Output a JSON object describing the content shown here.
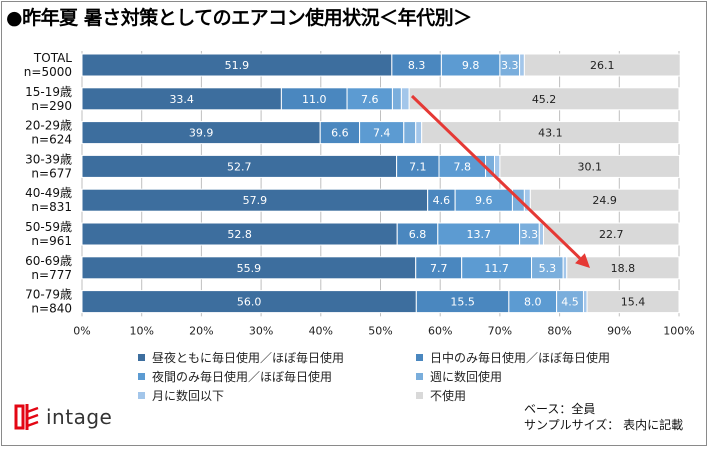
{
  "title": "●昨年夏 暑さ対策としてのエアコン使用状況＜年代別＞",
  "colors": {
    "series": [
      "#3d6e9e",
      "#4a87bf",
      "#5c9bd2",
      "#7aaedc",
      "#a3c6ea",
      "#d9d9d9"
    ],
    "arrow": "#e53935",
    "grid": "#bfbfbf"
  },
  "chart_data": {
    "type": "bar",
    "orientation": "horizontal",
    "stacked": true,
    "categories": [
      [
        "TOTAL",
        "n=5000"
      ],
      [
        "15-19歳",
        "n=290"
      ],
      [
        "20-29歳",
        "n=624"
      ],
      [
        "30-39歳",
        "n=677"
      ],
      [
        "40-49歳",
        "n=831"
      ],
      [
        "50-59歳",
        "n=961"
      ],
      [
        "60-69歳",
        "n=777"
      ],
      [
        "70-79歳",
        "n=840"
      ]
    ],
    "series": [
      {
        "name": "昼夜ともに毎日使用／ほぼ毎日使用",
        "values": [
          51.9,
          33.4,
          39.9,
          52.7,
          57.9,
          52.8,
          55.9,
          56.0
        ]
      },
      {
        "name": "日中のみ毎日使用／ほぼ毎日使用",
        "values": [
          8.3,
          11.0,
          6.6,
          7.1,
          4.6,
          6.8,
          7.7,
          15.5
        ]
      },
      {
        "name": "夜間のみ毎日使用／ほぼ毎日使用",
        "values": [
          9.8,
          7.6,
          7.4,
          7.8,
          9.6,
          13.7,
          11.7,
          8.0
        ]
      },
      {
        "name": "週に数回使用",
        "values": [
          3.3,
          1.5,
          2.0,
          1.5,
          2.0,
          3.3,
          5.3,
          4.5
        ]
      },
      {
        "name": "月に数回以下",
        "values": [
          0.8,
          1.3,
          1.0,
          0.9,
          1.0,
          0.7,
          0.6,
          0.6
        ]
      },
      {
        "name": "不使用",
        "values": [
          26.1,
          45.2,
          43.1,
          30.1,
          24.9,
          22.7,
          18.8,
          15.4
        ]
      }
    ],
    "labels": [
      [
        "51.9",
        "8.3",
        "9.8",
        "3.3",
        "",
        "26.1"
      ],
      [
        "33.4",
        "11.0",
        "7.6",
        "",
        "",
        "45.2"
      ],
      [
        "39.9",
        "6.6",
        "7.4",
        "",
        "",
        "43.1"
      ],
      [
        "52.7",
        "7.1",
        "7.8",
        "",
        "",
        "30.1"
      ],
      [
        "57.9",
        "4.6",
        "9.6",
        "",
        "",
        "24.9"
      ],
      [
        "52.8",
        "6.8",
        "13.7",
        "3.3",
        "",
        "22.7"
      ],
      [
        "55.9",
        "7.7",
        "11.7",
        "5.3",
        "",
        "18.8"
      ],
      [
        "56.0",
        "15.5",
        "8.0",
        "4.5",
        "",
        "15.4"
      ]
    ],
    "xlim": [
      0,
      100
    ],
    "xticks": [
      "0%",
      "10%",
      "20%",
      "30%",
      "40%",
      "50%",
      "60%",
      "70%",
      "80%",
      "90%",
      "100%"
    ],
    "grid": true,
    "legend_position": "bottom",
    "annotation": "red downward arrow from the 15-19歳 bar toward the 60-69歳 bar"
  },
  "legend_order": [
    0,
    1,
    2,
    3,
    4,
    5
  ],
  "logo": {
    "text": "intage"
  },
  "base_note": {
    "line1": "ベース：全員",
    "line2": "サンプルサイズ： 表内に記載"
  }
}
